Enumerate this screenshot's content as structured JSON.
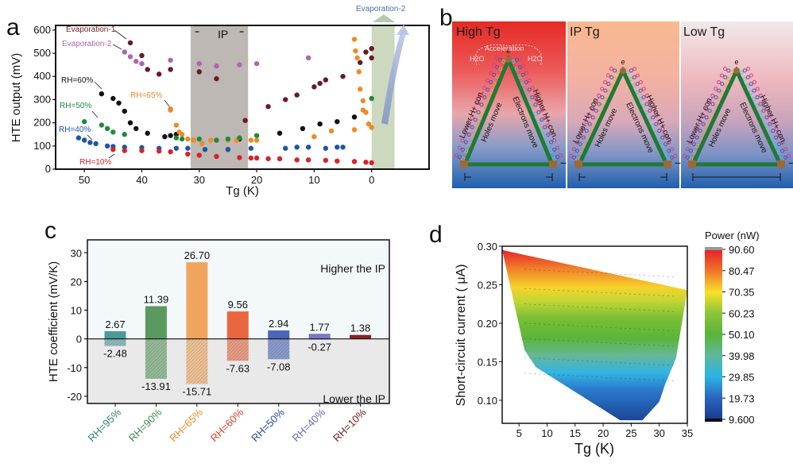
{
  "panels": {
    "a": "a",
    "b": "b",
    "c": "c",
    "d": "d"
  },
  "chart_data": [
    {
      "id": "a",
      "type": "scatter",
      "title": "",
      "xlabel": "Tg (K)",
      "ylabel": "HTE output  (mV)",
      "xlim": [
        55,
        -10
      ],
      "ylim": [
        0,
        620
      ],
      "x_ticks": [
        50,
        40,
        30,
        20,
        10,
        0
      ],
      "y_ticks": [
        0,
        100,
        200,
        300,
        400,
        500,
        600
      ],
      "shaded_regions": [
        {
          "label": "IP",
          "x_from": 31.5,
          "x_to": 21.5,
          "color": "#bdb8b3"
        },
        {
          "label": "Evaporation-2",
          "x_from": 0,
          "x_to": -4,
          "color": "#cdd9bf"
        }
      ],
      "annotations": [
        {
          "text": "Evaporation-1",
          "color": "#7a1f22"
        },
        {
          "text": "Evaporation-2",
          "color": "#b262b3"
        },
        {
          "text": "RH=60%",
          "color": "#111111"
        },
        {
          "text": "RH=65%",
          "color": "#ef8a24"
        },
        {
          "text": "RH=50%",
          "color": "#1e8a3c"
        },
        {
          "text": "RH=40%",
          "color": "#1f55a8"
        },
        {
          "text": "RH=10%",
          "color": "#d8222b"
        },
        {
          "text": "IP",
          "color": "#111111"
        },
        {
          "text": "Evaporation-2",
          "color": "#4a6ea8"
        }
      ],
      "series": [
        {
          "name": "Evaporation-1",
          "color": "#6b1a22",
          "x": [
            42,
            40,
            39,
            37,
            35,
            30,
            27,
            22,
            18,
            15,
            13,
            10,
            9,
            8,
            5,
            2,
            1,
            0,
            0
          ],
          "y": [
            545,
            490,
            430,
            410,
            430,
            420,
            390,
            210,
            270,
            300,
            320,
            355,
            370,
            385,
            400,
            460,
            505,
            480,
            520
          ]
        },
        {
          "name": "Evaporation-2",
          "color": "#b262b3",
          "x": [
            43,
            42,
            41,
            40,
            35,
            30,
            27,
            23,
            20,
            11
          ],
          "y": [
            505,
            485,
            465,
            455,
            470,
            455,
            445,
            450,
            455,
            480
          ]
        },
        {
          "name": "RH=60%",
          "color": "#111111",
          "x": [
            47,
            45,
            44,
            43,
            42,
            41,
            39,
            36,
            35,
            34,
            23,
            16,
            12,
            9,
            6,
            3
          ],
          "y": [
            325,
            305,
            285,
            250,
            200,
            175,
            155,
            140,
            145,
            150,
            130,
            155,
            175,
            195,
            205,
            225
          ]
        },
        {
          "name": "RH=65%",
          "color": "#ef8a24",
          "x": [
            35,
            35,
            34,
            33.5,
            33,
            32,
            31,
            29.5,
            28,
            27,
            25,
            23.5,
            21,
            20,
            10,
            7,
            3,
            0,
            0.5,
            1,
            1.5,
            1.5,
            2,
            2.2,
            2.5,
            2.8,
            3
          ],
          "y": [
            260,
            255,
            190,
            160,
            150,
            130,
            125,
            110,
            125,
            125,
            125,
            125,
            125,
            125,
            140,
            165,
            170,
            180,
            195,
            245,
            255,
            295,
            345,
            420,
            480,
            510,
            560
          ]
        },
        {
          "name": "RH=50%",
          "color": "#1e8a3c",
          "x": [
            50,
            47,
            46,
            45,
            43,
            34,
            33,
            30,
            27,
            25,
            23,
            20,
            0
          ],
          "y": [
            205,
            190,
            175,
            160,
            150,
            135,
            130,
            130,
            125,
            130,
            135,
            145,
            305
          ]
        },
        {
          "name": "RH=40%",
          "color": "#1f55a8",
          "x": [
            51,
            50,
            49,
            48,
            46,
            45,
            43,
            40,
            37,
            34,
            32,
            29,
            25,
            21,
            15,
            13,
            11,
            8,
            6,
            5
          ],
          "y": [
            135,
            125,
            115,
            110,
            100,
            98,
            95,
            93,
            90,
            90,
            90,
            85,
            85,
            90,
            90,
            95,
            95,
            90,
            95,
            95
          ]
        },
        {
          "name": "RH=10%",
          "color": "#d8222b",
          "x": [
            45,
            43,
            40,
            37,
            35,
            32,
            30,
            27,
            23,
            21,
            20,
            18,
            16,
            13,
            11,
            8,
            6,
            3,
            1,
            0
          ],
          "y": [
            85,
            80,
            80,
            78,
            75,
            65,
            60,
            55,
            50,
            48,
            48,
            45,
            45,
            40,
            40,
            38,
            35,
            33,
            30,
            28
          ]
        }
      ]
    },
    {
      "id": "b",
      "type": "diagram",
      "subpanels": [
        {
          "title": "High Tg",
          "labels": [
            "Acceleration",
            "H2O",
            "H2O",
            "e",
            "Lower H+ con.",
            "Holes move",
            "Electrons move",
            "Higher H+ con.",
            "−"
          ]
        },
        {
          "title": "IP Tg",
          "labels": [
            "e",
            "Lower H+ con.",
            "Holes move",
            "Electrons move",
            "Higher H+ con.",
            "−",
            "+"
          ]
        },
        {
          "title": "Low Tg",
          "labels": [
            "e",
            "Lower H+ con.",
            "Holes move",
            "Electrons move",
            "Higher H+ con.",
            "−"
          ]
        }
      ]
    },
    {
      "id": "c",
      "type": "bar",
      "title": "",
      "xlabel": "",
      "ylabel": "HTE coefficient (mV/K)",
      "ylim": [
        -22.5,
        34.5
      ],
      "y_ticks": [
        -20,
        -10,
        0,
        10,
        20,
        30
      ],
      "region_labels": {
        "upper": "Higher the IP",
        "lower": "Lower the IP"
      },
      "categories": [
        "RH=95%",
        "RH=90%",
        "RH=65%",
        "RH=60%",
        "RH=50%",
        "RH=40%",
        "RH=10%"
      ],
      "category_colors": [
        "#2e8077",
        "#3d8a4c",
        "#ef8a24",
        "#e0412b",
        "#2a4aa0",
        "#6b67b5",
        "#7a1a1f"
      ],
      "bar_colors": [
        "#4e9a9a",
        "#5a9a5e",
        "#efa55e",
        "#e8673f",
        "#4a66b8",
        "#7b78c4",
        "#8a2324"
      ],
      "series": [
        {
          "name": "Higher the IP",
          "values": [
            2.67,
            11.39,
            26.7,
            9.56,
            2.94,
            1.77,
            1.38
          ],
          "labels": [
            "2.67",
            "11.39",
            "26.70",
            "9.56",
            "2.94",
            "1.77",
            "1.38"
          ]
        },
        {
          "name": "Lower the IP",
          "values": [
            -2.48,
            -13.91,
            -15.71,
            -7.63,
            -7.08,
            -0.27,
            null
          ],
          "labels": [
            "-2.48",
            "-13.91",
            "-15.71",
            "-7.63",
            "-7.08",
            "-0.27",
            ""
          ]
        }
      ]
    },
    {
      "id": "d",
      "type": "heatmap",
      "title": "",
      "xlabel": "Tg (K)",
      "ylabel": "Short-circuit current (  μA)",
      "xlim": [
        2,
        35
      ],
      "ylim": [
        0.07,
        0.3
      ],
      "x_ticks": [
        5,
        10,
        15,
        20,
        25,
        30,
        35
      ],
      "y_ticks": [
        0.1,
        0.15,
        0.2,
        0.25,
        0.3
      ],
      "y_tick_labels": [
        "0.10",
        "0.15",
        "0.20",
        "0.25",
        "0.30"
      ],
      "colorbar": {
        "title": "Power (nW)",
        "ticks": [
          "90.60",
          "80.47",
          "70.35",
          "60.23",
          "50.10",
          "39.98",
          "29.85",
          "19.73",
          "9.600"
        ],
        "tick_values": [
          90.6,
          80.47,
          70.35,
          60.23,
          50.1,
          39.98,
          29.85,
          19.73,
          9.6
        ],
        "colors": [
          "#e8232a",
          "#f0762a",
          "#f8e02a",
          "#8cc43a",
          "#5ab43a",
          "#5fb89a",
          "#2ab4e6",
          "#2a66c0",
          "#1a3d8f"
        ]
      },
      "region_boundary": [
        [
          2,
          0.295
        ],
        [
          35,
          0.243
        ],
        [
          33,
          0.155
        ],
        [
          31,
          0.12
        ],
        [
          30,
          0.098
        ],
        [
          27,
          0.074
        ],
        [
          23,
          0.074
        ],
        [
          8,
          0.143
        ],
        [
          6,
          0.165
        ]
      ]
    }
  ]
}
